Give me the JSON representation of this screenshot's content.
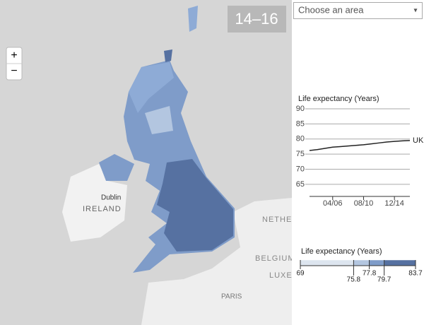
{
  "map": {
    "period": "14–16",
    "zoom_in": "+",
    "zoom_out": "−",
    "places": [
      "Dublin",
      "IRELAND",
      "NETHER",
      "BELGIUM",
      "LUXEM",
      "PARIS"
    ]
  },
  "dropdown": {
    "placeholder": "Choose an area",
    "arrow": "▾"
  },
  "chart_data": {
    "type": "line",
    "y_label": "Life expectancy (Years)",
    "categories": [
      null,
      null,
      null,
      "04/06",
      null,
      null,
      null,
      "08/10",
      null,
      null,
      null,
      "12/14",
      null,
      null
    ],
    "series": [
      {
        "name": "UK",
        "color": "#222222",
        "values": [
          76.2,
          76.5,
          76.9,
          77.3,
          77.5,
          77.7,
          77.9,
          78.1,
          78.4,
          78.7,
          79.0,
          79.2,
          79.4,
          79.5
        ]
      }
    ],
    "ylim": [
      61,
      90
    ],
    "yticks": [
      65,
      70,
      75,
      80,
      85,
      90
    ],
    "grid": true
  },
  "legend": {
    "title": "Life expectancy (Years)",
    "ticks": [
      69,
      75.8,
      77.8,
      79.7,
      83.7
    ],
    "colors": [
      "#dde5ef",
      "#b3c6e0",
      "#7f9cc9",
      "#5671a1"
    ]
  }
}
